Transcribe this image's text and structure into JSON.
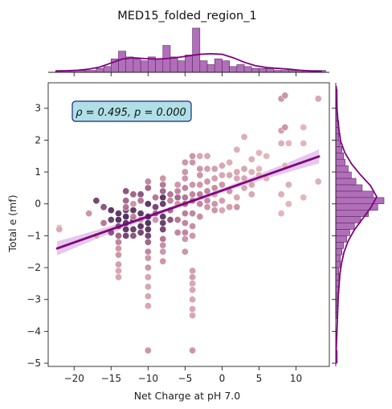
{
  "chart_data": {
    "type": "scatter",
    "title": "MED15_folded_region_1",
    "xlabel": "Net Charge at pH 7.0",
    "ylabel": "Total e (mf)",
    "xlim": [
      -23.5,
      14.5
    ],
    "ylim": [
      -5.1,
      3.8
    ],
    "x_ticks": [
      -20,
      -15,
      -10,
      -5,
      0,
      5,
      10
    ],
    "y_ticks": [
      -5,
      -4,
      -3,
      -2,
      -1,
      0,
      1,
      2,
      3
    ],
    "annotation": "ρ = 0.495, p = 0.000",
    "regression": {
      "slope": 0.0815,
      "intercept": 0.42,
      "x_range": [
        -22.3,
        13.1
      ],
      "ci_halfwidth_ends": 0.22,
      "ci_halfwidth_mid": 0.06
    },
    "colors": {
      "line": "#800080",
      "marginal_bar": "#b06fb8",
      "marginal_edge": "#5a2a63",
      "ci_band": "#dcb6e6",
      "annot_box": "#b0e0e6",
      "annot_edge": "#1a237e",
      "point_light": "#ecc1c0",
      "point_dark": "#3b1a4f"
    },
    "points": [
      [
        -22,
        -0.75,
        0.1
      ],
      [
        -22,
        -0.8,
        0.15
      ],
      [
        -18,
        -0.3,
        0.3
      ],
      [
        -17,
        -1.0,
        0.2
      ],
      [
        -17,
        0.1,
        0.8
      ],
      [
        -16,
        -0.1,
        0.7
      ],
      [
        -16,
        -0.6,
        0.5
      ],
      [
        -15,
        -0.2,
        0.9
      ],
      [
        -15,
        -0.5,
        0.85
      ],
      [
        -15,
        -0.9,
        0.7
      ],
      [
        -14,
        -0.5,
        0.95
      ],
      [
        -14,
        -0.3,
        0.9
      ],
      [
        -14,
        -0.7,
        0.75
      ],
      [
        -14,
        -1.0,
        0.6
      ],
      [
        -14,
        -1.2,
        0.4
      ],
      [
        -14,
        -1.4,
        0.3
      ],
      [
        -14,
        -1.6,
        0.3
      ],
      [
        -14,
        -1.9,
        0.25
      ],
      [
        -14,
        -2.1,
        0.2
      ],
      [
        -14,
        -2.3,
        0.2
      ],
      [
        -13,
        -0.4,
        0.95
      ],
      [
        -13,
        -0.6,
        0.9
      ],
      [
        -13,
        -0.2,
        0.8
      ],
      [
        -13,
        0.4,
        0.7
      ],
      [
        -13,
        0.1,
        0.6
      ],
      [
        -13,
        -0.8,
        0.9
      ],
      [
        -13,
        -1.0,
        0.8
      ],
      [
        -13,
        -0.1,
        0.5
      ],
      [
        -12,
        -0.2,
        0.9
      ],
      [
        -12,
        -0.5,
        0.95
      ],
      [
        -12,
        -0.8,
        0.85
      ],
      [
        -12,
        0.3,
        0.6
      ],
      [
        -12,
        -1.0,
        0.7
      ],
      [
        -12,
        -0.4,
        0.4
      ],
      [
        -12,
        0.0,
        0.3
      ],
      [
        -11,
        -0.3,
        0.9
      ],
      [
        -11,
        -0.7,
        0.9
      ],
      [
        -11,
        -0.9,
        0.8
      ],
      [
        -11,
        0.3,
        0.7
      ],
      [
        -11,
        0.1,
        0.5
      ],
      [
        -11,
        -0.5,
        0.3
      ],
      [
        -10,
        0.0,
        0.9
      ],
      [
        -10,
        -0.4,
        0.95
      ],
      [
        -10,
        -0.6,
        0.95
      ],
      [
        -10,
        -0.8,
        0.9
      ],
      [
        -10,
        -1.0,
        0.8
      ],
      [
        -10,
        -1.2,
        0.6
      ],
      [
        -10,
        -1.5,
        0.4
      ],
      [
        -10,
        -1.7,
        0.3
      ],
      [
        -10,
        -2.0,
        0.3
      ],
      [
        -10,
        -2.3,
        0.2
      ],
      [
        -10,
        -2.6,
        0.2
      ],
      [
        -10,
        -2.9,
        0.2
      ],
      [
        -10,
        -3.2,
        0.2
      ],
      [
        -10,
        0.5,
        0.6
      ],
      [
        -10,
        0.7,
        0.4
      ],
      [
        -10,
        -4.6,
        0.3
      ],
      [
        -9,
        -0.1,
        0.8
      ],
      [
        -9,
        -0.3,
        0.6
      ],
      [
        -9,
        0.2,
        0.5
      ],
      [
        -9,
        -0.5,
        0.3
      ],
      [
        -8,
        0.2,
        0.9
      ],
      [
        -8,
        0.0,
        0.85
      ],
      [
        -8,
        -0.4,
        0.9
      ],
      [
        -8,
        -0.6,
        0.85
      ],
      [
        -8,
        -0.8,
        0.8
      ],
      [
        -8,
        0.4,
        0.6
      ],
      [
        -8,
        0.6,
        0.5
      ],
      [
        -8,
        -1.1,
        0.5
      ],
      [
        -8,
        -1.3,
        0.35
      ],
      [
        -8,
        -1.5,
        0.3
      ],
      [
        -8,
        -1.8,
        0.3
      ],
      [
        -8,
        0.8,
        0.3
      ],
      [
        -7,
        -0.5,
        0.7
      ],
      [
        -7,
        0.3,
        0.5
      ],
      [
        -7,
        -0.2,
        0.55
      ],
      [
        -7,
        0.1,
        0.4
      ],
      [
        -6,
        0.2,
        0.6
      ],
      [
        -6,
        -0.5,
        0.5
      ],
      [
        -6,
        0.4,
        0.4
      ],
      [
        -6,
        0.6,
        0.3
      ],
      [
        -6,
        -0.9,
        0.4
      ],
      [
        -6,
        0.0,
        0.3
      ],
      [
        -5,
        0.2,
        0.5
      ],
      [
        -5,
        0.0,
        0.55
      ],
      [
        -5,
        -0.3,
        0.45
      ],
      [
        -5,
        -0.6,
        0.4
      ],
      [
        -5,
        -0.9,
        0.4
      ],
      [
        -5,
        -1.1,
        0.3
      ],
      [
        -5,
        -1.5,
        0.3
      ],
      [
        -5,
        0.5,
        0.4
      ],
      [
        -5,
        0.8,
        0.3
      ],
      [
        -5,
        1.0,
        0.3
      ],
      [
        -5,
        1.3,
        0.3
      ],
      [
        -4,
        0.1,
        0.5
      ],
      [
        -4,
        0.3,
        0.4
      ],
      [
        -4,
        -0.3,
        0.4
      ],
      [
        -4,
        -0.7,
        0.35
      ],
      [
        -4,
        -1.0,
        0.3
      ],
      [
        -4,
        -2.1,
        0.25
      ],
      [
        -4,
        -2.3,
        0.25
      ],
      [
        -4,
        -2.5,
        0.2
      ],
      [
        -4,
        -2.7,
        0.2
      ],
      [
        -4,
        -3.0,
        0.2
      ],
      [
        -4,
        -3.3,
        0.2
      ],
      [
        -4,
        -3.5,
        0.2
      ],
      [
        -4,
        -4.6,
        0.3
      ],
      [
        -4,
        1.3,
        0.3
      ],
      [
        -4,
        1.5,
        0.3
      ],
      [
        -4,
        0.6,
        0.3
      ],
      [
        -3,
        0.3,
        0.45
      ],
      [
        -3,
        0.0,
        0.4
      ],
      [
        -3,
        -0.4,
        0.35
      ],
      [
        -3,
        0.6,
        0.3
      ],
      [
        -3,
        1.1,
        0.3
      ],
      [
        -3,
        1.5,
        0.2
      ],
      [
        -3,
        0.9,
        0.3
      ],
      [
        -2,
        0.4,
        0.4
      ],
      [
        -2,
        0.1,
        0.35
      ],
      [
        -2,
        0.7,
        0.3
      ],
      [
        -2,
        1.1,
        0.25
      ],
      [
        -2,
        -0.1,
        0.3
      ],
      [
        -2,
        1.5,
        0.2
      ],
      [
        -1,
        0.5,
        0.35
      ],
      [
        -1,
        0.0,
        0.3
      ],
      [
        -1,
        0.8,
        0.25
      ],
      [
        -1,
        -0.2,
        0.3
      ],
      [
        -1,
        1.1,
        0.25
      ],
      [
        -1,
        0.3,
        0.2
      ],
      [
        0,
        0.6,
        0.3
      ],
      [
        0,
        0.1,
        0.25
      ],
      [
        0,
        0.9,
        0.2
      ],
      [
        0,
        1.2,
        0.2
      ],
      [
        0,
        -0.2,
        0.2
      ],
      [
        1,
        0.4,
        0.3
      ],
      [
        1,
        0.9,
        0.2
      ],
      [
        1,
        -0.1,
        0.25
      ],
      [
        1,
        1.3,
        0.15
      ],
      [
        2,
        0.8,
        0.2
      ],
      [
        2,
        0.2,
        0.2
      ],
      [
        2,
        -0.1,
        0.3
      ],
      [
        2,
        1.7,
        0.15
      ],
      [
        2,
        1.0,
        0.2
      ],
      [
        3,
        1.1,
        0.2
      ],
      [
        3,
        0.5,
        0.2
      ],
      [
        3,
        2.1,
        0.15
      ],
      [
        3,
        0.8,
        0.2
      ],
      [
        4,
        1.0,
        0.15
      ],
      [
        4,
        0.6,
        0.2
      ],
      [
        4,
        1.4,
        0.15
      ],
      [
        4,
        0.3,
        0.2
      ],
      [
        5,
        1.6,
        0.1
      ],
      [
        5,
        0.9,
        0.15
      ],
      [
        5,
        1.1,
        0.1
      ],
      [
        6,
        1.5,
        0.1
      ],
      [
        6,
        0.8,
        0.1
      ],
      [
        8,
        3.3,
        0.3
      ],
      [
        8,
        2.3,
        0.25
      ],
      [
        8,
        1.9,
        0.15
      ],
      [
        8,
        0.3,
        0.15
      ],
      [
        8,
        -0.3,
        0.1
      ],
      [
        8.5,
        3.4,
        0.3
      ],
      [
        8.5,
        2.4,
        0.3
      ],
      [
        8.5,
        1.2,
        0.1
      ],
      [
        9,
        1.9,
        0.1
      ],
      [
        9,
        0.6,
        0.15
      ],
      [
        9,
        0.0,
        0.1
      ],
      [
        11,
        1.9,
        0.1
      ],
      [
        11,
        2.4,
        0.1
      ],
      [
        11,
        0.2,
        0.1
      ],
      [
        13,
        3.3,
        0.2
      ],
      [
        13,
        0.7,
        0.15
      ]
    ],
    "x_hist": {
      "bins": [
        -22.5,
        -20.5,
        -18.5,
        -17,
        -16,
        -15,
        -14,
        -13,
        -12,
        -11,
        -10,
        -9,
        -8,
        -7,
        -6,
        -5,
        -4,
        -3,
        -2,
        -1,
        0,
        1,
        2,
        3,
        4,
        5,
        6,
        7,
        8,
        9,
        10,
        11,
        12,
        13,
        14
      ],
      "counts": [
        1,
        1,
        1,
        2,
        3,
        7,
        11,
        8,
        7,
        6,
        8,
        7,
        14,
        8,
        6,
        9,
        23,
        6,
        4,
        7,
        6,
        3,
        4,
        3,
        2,
        2,
        2,
        1,
        1,
        1,
        1,
        1,
        1,
        1
      ],
      "kde": [
        0.05,
        0.06,
        0.08,
        0.12,
        0.2,
        0.35,
        0.5,
        0.55,
        0.52,
        0.5,
        0.52,
        0.56,
        0.62,
        0.68,
        0.7,
        0.68,
        0.55,
        0.38,
        0.25,
        0.18,
        0.15,
        0.12,
        0.08,
        0.05,
        0.03
      ]
    },
    "y_hist": {
      "bins": [
        -5,
        -4.6,
        -4.4,
        -4.2,
        -4,
        -3.8,
        -3.6,
        -3.4,
        -3.2,
        -3,
        -2.8,
        -2.6,
        -2.4,
        -2.2,
        -2,
        -1.8,
        -1.6,
        -1.4,
        -1.2,
        -1,
        -0.8,
        -0.6,
        -0.4,
        -0.2,
        0,
        0.2,
        0.4,
        0.6,
        0.8,
        1,
        1.2,
        1.4,
        1.6,
        1.8,
        2,
        2.2,
        2.4,
        2.6,
        2.8,
        3,
        3.2,
        3.4,
        3.6
      ],
      "counts": [
        1,
        0,
        0,
        0,
        0,
        0,
        1,
        1,
        1,
        1,
        2,
        2,
        2,
        2,
        3,
        3,
        4,
        5,
        7,
        9,
        12,
        16,
        21,
        27,
        31,
        24,
        17,
        13,
        10,
        8,
        6,
        5,
        4,
        3,
        2,
        2,
        2,
        1,
        1,
        1,
        1,
        1
      ],
      "kde": [
        0.01,
        0.01,
        0.02,
        0.03,
        0.04,
        0.05,
        0.06,
        0.08,
        0.1,
        0.14,
        0.2,
        0.3,
        0.45,
        0.65,
        0.85,
        1.0,
        0.85,
        0.6,
        0.38,
        0.22,
        0.12,
        0.08,
        0.05,
        0.03,
        0.02,
        0.01
      ]
    }
  }
}
